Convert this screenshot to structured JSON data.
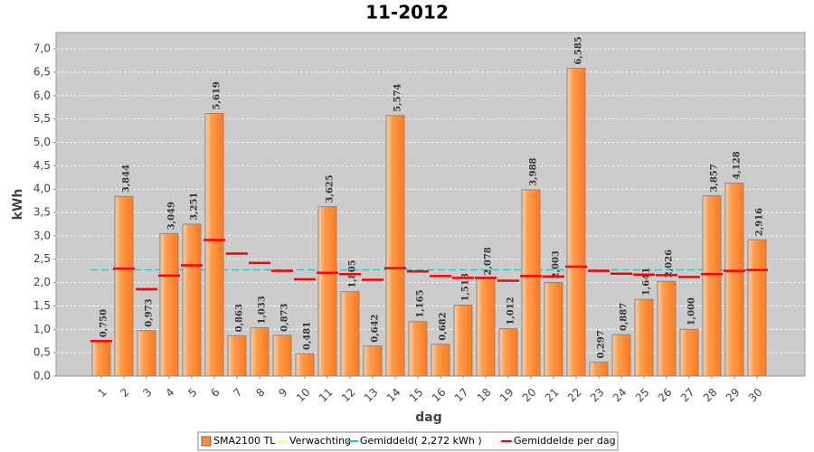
{
  "chart_data": {
    "type": "bar",
    "title": "11-2012",
    "y_label": "kWh",
    "x_label": "dag",
    "categories": [
      "1",
      "2",
      "3",
      "4",
      "5",
      "6",
      "7",
      "8",
      "9",
      "10",
      "11",
      "12",
      "13",
      "14",
      "15",
      "16",
      "17",
      "18",
      "19",
      "20",
      "21",
      "22",
      "23",
      "24",
      "25",
      "26",
      "27",
      "28",
      "29",
      "30"
    ],
    "series": [
      {
        "name": "SMA2100 TL",
        "color": "#ff8c3a",
        "values": [
          0.75,
          3.844,
          0.973,
          3.049,
          3.251,
          5.619,
          0.863,
          1.033,
          0.873,
          0.481,
          3.625,
          1.805,
          0.642,
          5.574,
          1.165,
          0.682,
          1.518,
          2.078,
          1.012,
          3.988,
          2.003,
          6.585,
          0.297,
          0.887,
          1.641,
          2.026,
          1.0,
          3.857,
          4.128,
          2.916
        ],
        "value_labels": [
          "0,750",
          "3,844",
          "0,973",
          "3,049",
          "3,251",
          "5,619",
          "0,863",
          "1,033",
          "0,873",
          "0,481",
          "3,625",
          "1,805",
          "0,642",
          "5,574",
          "1,165",
          "0,682",
          "1,518",
          "2,078",
          "1,012",
          "3,988",
          "2,003",
          "6,585",
          "0,297",
          "0,887",
          "1,641",
          "2,026",
          "1,000",
          "3,857",
          "4,128",
          "2,916"
        ]
      },
      {
        "name": "Gemiddelde per dag",
        "color": "#ff0000",
        "values": [
          0.75,
          2.3,
          1.86,
          2.15,
          2.37,
          2.91,
          2.62,
          2.42,
          2.25,
          2.07,
          2.21,
          2.18,
          2.06,
          2.31,
          2.24,
          2.14,
          2.1,
          2.1,
          2.04,
          2.14,
          2.13,
          2.34,
          2.25,
          2.19,
          2.17,
          2.16,
          2.12,
          2.18,
          2.25,
          2.27
        ]
      }
    ],
    "average_line": {
      "name": "Gemiddeld( 2,272 kWh )",
      "value": 2.272,
      "color": "#33bbbb"
    },
    "expectation": {
      "name": "Verwachting",
      "color": "#ffff66"
    },
    "ylim": [
      0,
      7.35
    ],
    "yticks": [
      {
        "value": 0,
        "label": "0,0"
      },
      {
        "value": 0.5,
        "label": "0,5"
      },
      {
        "value": 1,
        "label": "1,0"
      },
      {
        "value": 1.5,
        "label": "1,5"
      },
      {
        "value": 2,
        "label": "2,0"
      },
      {
        "value": 2.5,
        "label": "2,5"
      },
      {
        "value": 3,
        "label": "3,0"
      },
      {
        "value": 3.5,
        "label": "3,5"
      },
      {
        "value": 4,
        "label": "4,0"
      },
      {
        "value": 4.5,
        "label": "4,5"
      },
      {
        "value": 5,
        "label": "5,0"
      },
      {
        "value": 5.5,
        "label": "5,5"
      },
      {
        "value": 6,
        "label": "6,0"
      },
      {
        "value": 6.5,
        "label": "6,5"
      },
      {
        "value": 7,
        "label": "7,0"
      }
    ],
    "grid": true
  }
}
